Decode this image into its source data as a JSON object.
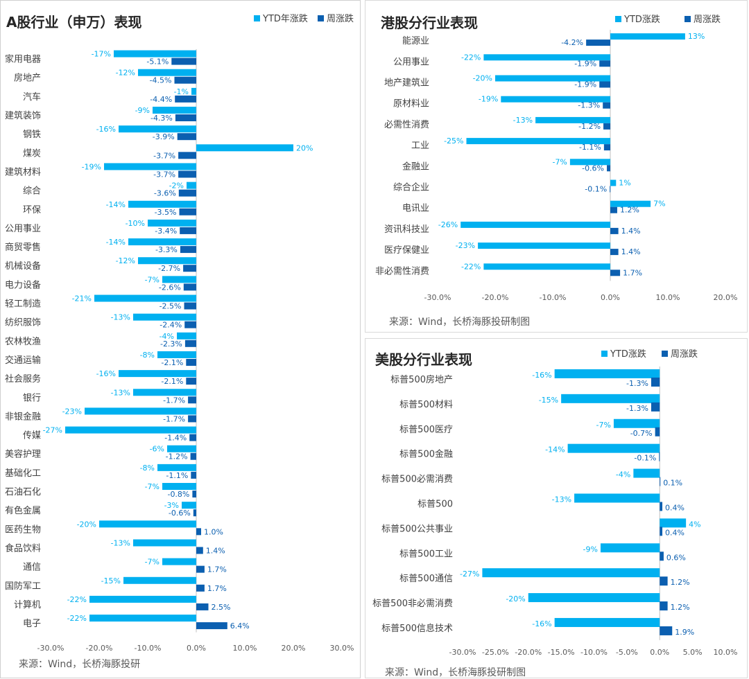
{
  "colors": {
    "ytd": "#00b0f0",
    "week": "#0b5fb0",
    "axis": "#d9d9d9"
  },
  "chart_data": [
    {
      "type": "bar",
      "title": "A股行业（申万）表现",
      "legend": [
        "YTD年涨跌",
        "周涨跌"
      ],
      "source": "来源：Wind，长桥海豚投研",
      "xticks": [
        "-30.0%",
        "-20.0%",
        "-10.0%",
        "0.0%",
        "10.0%",
        "20.0%",
        "30.0%"
      ],
      "xlim": [
        -30,
        30
      ],
      "categories": [
        "家用电器",
        "房地产",
        "汽车",
        "建筑装饰",
        "钢铁",
        "煤炭",
        "建筑材料",
        "综合",
        "环保",
        "公用事业",
        "商贸零售",
        "机械设备",
        "电力设备",
        "轻工制造",
        "纺织服饰",
        "农林牧渔",
        "交通运输",
        "社会服务",
        "银行",
        "非银金融",
        "传媒",
        "美容护理",
        "基础化工",
        "石油石化",
        "有色金属",
        "医药生物",
        "食品饮料",
        "通信",
        "国防军工",
        "计算机",
        "电子"
      ],
      "series": [
        {
          "name": "YTD年涨跌",
          "values": [
            -17,
            -12,
            -1,
            -9,
            -16,
            20,
            -19,
            -2,
            -14,
            -10,
            -14,
            -12,
            -7,
            -21,
            -13,
            -4,
            -8,
            -16,
            -13,
            -23,
            -27,
            -6,
            -8,
            -7,
            -3,
            -20,
            -13,
            -7,
            -15,
            -22,
            -22
          ],
          "labels": [
            "-17%",
            "-12%",
            "-1%",
            "-9%",
            "-16%",
            "20%",
            "-19%",
            "-2%",
            "-14%",
            "-10%",
            "-14%",
            "-12%",
            "-7%",
            "-21%",
            "-13%",
            "-4%",
            "-8%",
            "-16%",
            "-13%",
            "-23%",
            "-27%",
            "-6%",
            "-8%",
            "-7%",
            "-3%",
            "-20%",
            "-13%",
            "-7%",
            "-15%",
            "-22%",
            "-22%"
          ]
        },
        {
          "name": "周涨跌",
          "values": [
            -5.1,
            -4.5,
            -4.4,
            -4.3,
            -3.9,
            -3.7,
            -3.7,
            -3.6,
            -3.5,
            -3.4,
            -3.3,
            -2.7,
            -2.6,
            -2.5,
            -2.4,
            -2.3,
            -2.1,
            -2.1,
            -1.7,
            -1.7,
            -1.4,
            -1.2,
            -1.1,
            -0.8,
            -0.6,
            1.0,
            1.4,
            1.7,
            1.7,
            2.5,
            6.4
          ],
          "labels": [
            "-5.1%",
            "-4.5%",
            "-4.4%",
            "-4.3%",
            "-3.9%",
            "-3.7%",
            "-3.7%",
            "-3.6%",
            "-3.5%",
            "-3.4%",
            "-3.3%",
            "-2.7%",
            "-2.6%",
            "-2.5%",
            "-2.4%",
            "-2.3%",
            "-2.1%",
            "-2.1%",
            "-1.7%",
            "-1.7%",
            "-1.4%",
            "-1.2%",
            "-1.1%",
            "-0.8%",
            "-0.6%",
            "1.0%",
            "1.4%",
            "1.7%",
            "1.7%",
            "2.5%",
            "6.4%"
          ]
        }
      ]
    },
    {
      "type": "bar",
      "title": "港股分行业表现",
      "legend": [
        "YTD涨跌",
        "周涨跌"
      ],
      "source": "来源：Wind，长桥海豚投研制图",
      "xticks": [
        "-30.0%",
        "-20.0%",
        "-10.0%",
        "0.0%",
        "10.0%",
        "20.0%"
      ],
      "xlim": [
        -30,
        20
      ],
      "categories": [
        "能源业",
        "公用事业",
        "地产建筑业",
        "原材料业",
        "必需性消费",
        "工业",
        "金融业",
        "综合企业",
        "电讯业",
        "资讯科技业",
        "医疗保健业",
        "非必需性消费"
      ],
      "series": [
        {
          "name": "YTD涨跌",
          "values": [
            13,
            -22,
            -20,
            -19,
            -13,
            -25,
            -7,
            1,
            7,
            -26,
            -23,
            -22
          ],
          "labels": [
            "13%",
            "-22%",
            "-20%",
            "-19%",
            "-13%",
            "-25%",
            "-7%",
            "1%",
            "7%",
            "-26%",
            "-23%",
            "-22%"
          ]
        },
        {
          "name": "周涨跌",
          "values": [
            -4.2,
            -1.9,
            -1.9,
            -1.3,
            -1.2,
            -1.1,
            -0.6,
            -0.1,
            1.2,
            1.4,
            1.4,
            1.7
          ],
          "labels": [
            "-4.2%",
            "-1.9%",
            "-1.9%",
            "-1.3%",
            "-1.2%",
            "-1.1%",
            "-0.6%",
            "-0.1%",
            "1.2%",
            "1.4%",
            "1.4%",
            "1.7%"
          ]
        }
      ]
    },
    {
      "type": "bar",
      "title": "美股分行业表现",
      "legend": [
        "YTD涨跌",
        "周涨跌"
      ],
      "source": "来源：Wind，长桥海豚投研制图",
      "xticks": [
        "-30.0%",
        "-25.0%",
        "-20.0%",
        "-15.0%",
        "-10.0%",
        "-5.0%",
        "0.0%",
        "5.0%",
        "10.0%"
      ],
      "xlim": [
        -30,
        10
      ],
      "categories": [
        "标普500房地产",
        "标普500材料",
        "标普500医疗",
        "标普500金融",
        "标普500必需消费",
        "标普500",
        "标普500公共事业",
        "标普500工业",
        "标普500通信",
        "标普500非必需消费",
        "标普500信息技术"
      ],
      "series": [
        {
          "name": "YTD涨跌",
          "values": [
            -16,
            -15,
            -7,
            -14,
            -4,
            -13,
            4,
            -9,
            -27,
            -20,
            -16
          ],
          "labels": [
            "-16%",
            "-15%",
            "-7%",
            "-14%",
            "-4%",
            "-13%",
            "4%",
            "-9%",
            "-27%",
            "-20%",
            "-16%"
          ]
        },
        {
          "name": "周涨跌",
          "values": [
            -1.3,
            -1.3,
            -0.7,
            -0.1,
            0.1,
            0.4,
            0.4,
            0.6,
            1.2,
            1.2,
            1.9
          ],
          "labels": [
            "-1.3%",
            "-1.3%",
            "-0.7%",
            "-0.1%",
            "0.1%",
            "0.4%",
            "0.4%",
            "0.6%",
            "1.2%",
            "1.2%",
            "1.9%"
          ]
        }
      ]
    }
  ]
}
